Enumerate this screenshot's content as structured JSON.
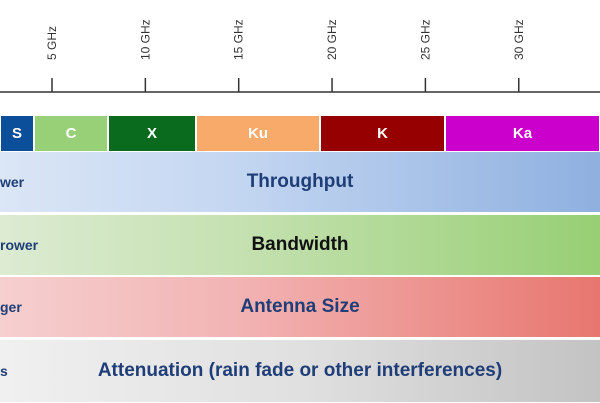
{
  "scale": {
    "ticks": [
      "5 GHz",
      "10 GHz",
      "15 GHz",
      "20 GHz",
      "25 GHz",
      "30 GHz"
    ],
    "tick_values_ghz": [
      5,
      10,
      15,
      20,
      25,
      30
    ]
  },
  "bands": [
    {
      "label": "S",
      "start_ghz": 2,
      "end_ghz": 4,
      "color": "#0b4f9a"
    },
    {
      "label": "C",
      "start_ghz": 4,
      "end_ghz": 8,
      "color": "#97d077"
    },
    {
      "label": "X",
      "start_ghz": 8,
      "end_ghz": 12,
      "color": "#0a6b1f"
    },
    {
      "label": "Ku",
      "start_ghz": 12,
      "end_ghz": 18,
      "color": "#f8aa6a"
    },
    {
      "label": "K",
      "start_ghz": 18,
      "end_ghz": 26.5,
      "color": "#960000"
    },
    {
      "label": "Ka",
      "start_ghz": 26.5,
      "end_ghz": 40,
      "color": "#cc00cc"
    }
  ],
  "rows": {
    "throughput": {
      "left": "wer",
      "title": "Throughput",
      "title_color": "#1f3e78"
    },
    "bandwidth": {
      "left": "rower",
      "title": "Bandwidth",
      "title_color": "#111111"
    },
    "antenna": {
      "left": "ger",
      "title": "Antenna Size",
      "title_color": "#1f3e78"
    },
    "attenuation": {
      "left": "s",
      "title": "Attenuation (rain fade or other interferences)",
      "title_color": "#1f3e78"
    }
  }
}
